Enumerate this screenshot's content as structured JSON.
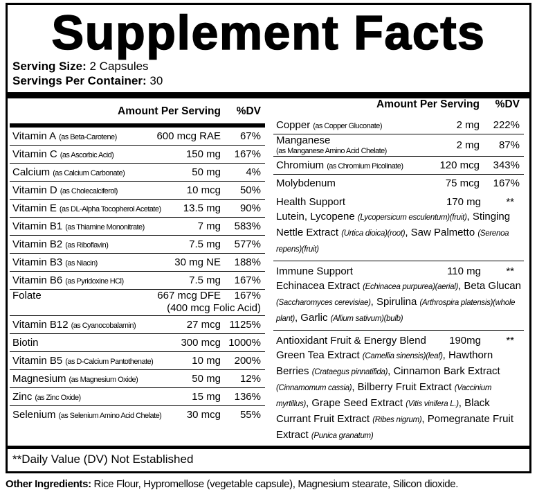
{
  "title": "Supplement Facts",
  "serving_size": {
    "label": "Serving Size:",
    "value": "2 Capsules"
  },
  "servings_per_container": {
    "label": "Servings Per Container:",
    "value": "30"
  },
  "header": {
    "amount": "Amount Per Serving",
    "dv": "%DV"
  },
  "left_rows": [
    {
      "name": "Vitamin A",
      "source": "(as Beta-Carotene)",
      "amount": "600 mcg RAE",
      "dv": "67%"
    },
    {
      "name": "Vitamin C",
      "source": "(as Ascorbic Acid)",
      "amount": "150 mg",
      "dv": "167%"
    },
    {
      "name": "Calcium",
      "source": "(as Calcium Carbonate)",
      "amount": "50 mg",
      "dv": "4%"
    },
    {
      "name": "Vitamin D",
      "source": "(as Cholecalciferol)",
      "amount": "10 mcg",
      "dv": "50%"
    },
    {
      "name": "Vitamin E",
      "source": "(as DL-Alpha Tocopherol Acetate)",
      "amount": "13.5 mg",
      "dv": "90%"
    },
    {
      "name": "Vitamin B1",
      "source": "(as Thiamine Mononitrate)",
      "amount": "7 mg",
      "dv": "583%"
    },
    {
      "name": "Vitamin B2",
      "source": "(as Riboflavin)",
      "amount": "7.5 mg",
      "dv": "577%"
    },
    {
      "name": "Vitamin B3",
      "source": "(as Niacin)",
      "amount": "30 mg NE",
      "dv": "188%"
    },
    {
      "name": "Vitamin B6",
      "source": "(as Pyridoxine HCl)",
      "amount": "7.5 mg",
      "dv": "167%"
    },
    {
      "name": "Folate",
      "amount": "667 mcg DFE",
      "dv": "167%",
      "note": "(400 mcg Folic Acid)"
    },
    {
      "name": "Vitamin B12",
      "source": "(as Cyanocobalamin)",
      "amount": "27 mcg",
      "dv": "1125%"
    },
    {
      "name": "Biotin",
      "amount": "300 mcg",
      "dv": "1000%"
    },
    {
      "name": "Vitamin B5",
      "source": "(as D-Calcium Pantothenate)",
      "amount": "10 mg",
      "dv": "200%"
    },
    {
      "name": "Magnesium",
      "source": "(as Magnesium Oxide)",
      "amount": "50 mg",
      "dv": "12%"
    },
    {
      "name": "Zinc",
      "source": "(as Zinc Oxide)",
      "amount": "15 mg",
      "dv": "136%"
    },
    {
      "name": "Selenium",
      "source": "(as Selenium Amino Acid Chelate)",
      "amount": "30 mcg",
      "dv": "55%"
    }
  ],
  "right_rows": [
    {
      "name": "Copper",
      "source": "(as Copper Gluconate)",
      "amount": "2 mg",
      "dv": "222%"
    },
    {
      "name": "Manganese",
      "source": "(as Manganese Amino Acid Chelate)",
      "source_on_new_line": true,
      "amount": "2 mg",
      "dv": "87%"
    },
    {
      "name": "Chromium",
      "source": "(as Chromium Picolinate)",
      "amount": "120 mcg",
      "dv": "343%"
    },
    {
      "name": "Molybdenum",
      "amount": "75 mcg",
      "dv": "167%"
    }
  ],
  "blends": [
    {
      "name": "Health Support",
      "amount": "170 mg",
      "dv": "**",
      "ingredients": [
        {
          "text": "Lutein, Lycopene ",
          "italic": false
        },
        {
          "text": "(Lycopersicum esculentum)(fruit)",
          "italic": true
        },
        {
          "text": ", Stinging Nettle Extract ",
          "italic": false
        },
        {
          "text": "(Urtica dioica)(root)",
          "italic": true
        },
        {
          "text": ", Saw Palmetto ",
          "italic": false
        },
        {
          "text": "(Serenoa repens)(fruit)",
          "italic": true
        }
      ]
    },
    {
      "name": "Immune Support",
      "amount": "110 mg",
      "dv": "**",
      "ingredients": [
        {
          "text": "Echinacea Extract ",
          "italic": false
        },
        {
          "text": "(Echinacea purpurea)(aerial)",
          "italic": true
        },
        {
          "text": ", Beta Glucan ",
          "italic": false
        },
        {
          "text": "(Saccharomyces cerevisiae)",
          "italic": true
        },
        {
          "text": ", Spirulina ",
          "italic": false
        },
        {
          "text": "(Arthrospira platensis)(whole plant)",
          "italic": true
        },
        {
          "text": ", Garlic ",
          "italic": false
        },
        {
          "text": "(Allium sativum)(bulb)",
          "italic": true
        }
      ]
    },
    {
      "name": "Antioxidant Fruit & Energy Blend",
      "amount": "190mg",
      "dv": "**",
      "ingredients": [
        {
          "text": "Green Tea Extract ",
          "italic": false
        },
        {
          "text": "(Camellia sinensis)(leaf)",
          "italic": true
        },
        {
          "text": ", Hawthorn Berries ",
          "italic": false
        },
        {
          "text": "(Crataegus pinnatifida)",
          "italic": true
        },
        {
          "text": ", Cinnamon Bark Extract ",
          "italic": false
        },
        {
          "text": "(Cinnamomum cassia)",
          "italic": true
        },
        {
          "text": ", Bilberry Fruit Extract ",
          "italic": false
        },
        {
          "text": "(Vaccinium myrtillus)",
          "italic": true
        },
        {
          "text": ", Grape Seed Extract ",
          "italic": false
        },
        {
          "text": "(Vitis vinifera L.)",
          "italic": true
        },
        {
          "text": ", Black Currant Fruit Extract ",
          "italic": false
        },
        {
          "text": "(Ribes nigrum)",
          "italic": true
        },
        {
          "text": ", Pomegranate Fruit Extract ",
          "italic": false
        },
        {
          "text": "(Punica granatum)",
          "italic": true
        }
      ]
    }
  ],
  "footnote": "**Daily Value (DV) Not Established",
  "other_ingredients": {
    "label": "Other Ingredients:",
    "value": "Rice Flour, Hypromellose (vegetable capsule), Magnesium stearate, Silicon dioxide."
  }
}
